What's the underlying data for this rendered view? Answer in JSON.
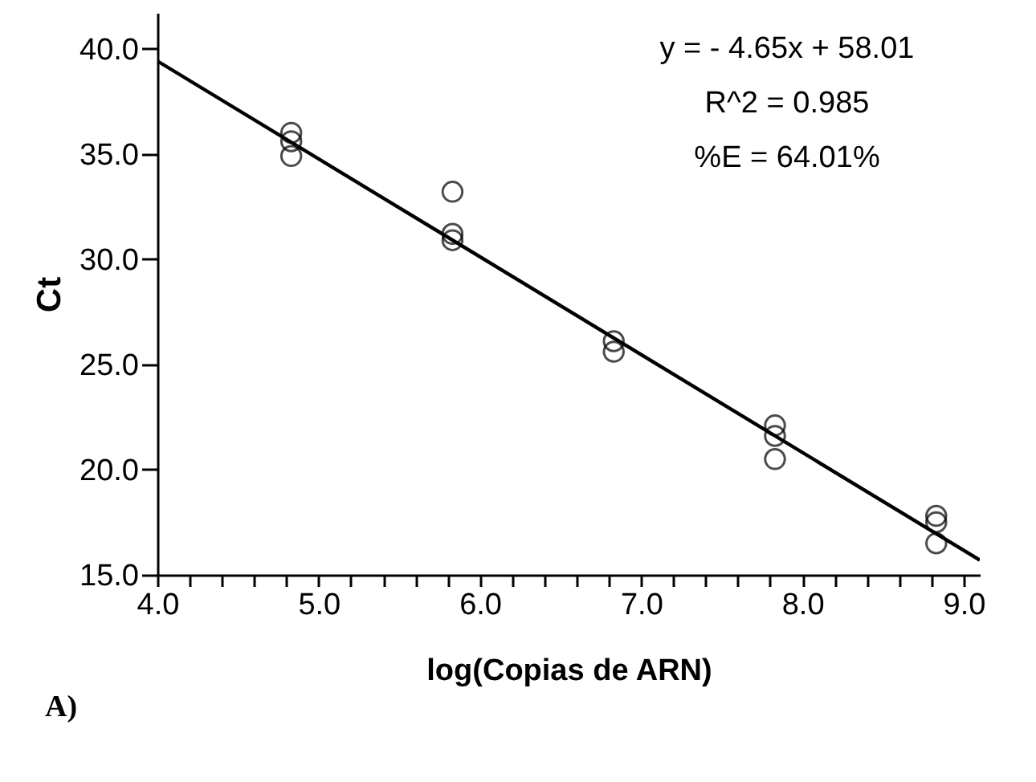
{
  "chart_data": {
    "type": "scatter",
    "xlabel": "log(Copias de ARN)",
    "ylabel": "Ct",
    "series": [
      {
        "type": "scatter",
        "color": "#000000",
        "marker": "circle",
        "x": [
          4.83,
          4.83,
          4.83,
          5.83,
          5.83,
          5.83,
          6.83,
          6.83,
          7.83,
          7.83,
          7.83,
          8.83,
          8.83,
          8.83
        ],
        "values": [
          36.0,
          35.6,
          34.9,
          33.2,
          31.2,
          30.9,
          26.1,
          25.6,
          22.1,
          21.6,
          20.5,
          17.8,
          17.5,
          16.5
        ]
      },
      {
        "type": "line",
        "color": "#000000",
        "marker": "none",
        "line_style": "solid",
        "x": [
          4.0,
          9.1
        ],
        "values": [
          39.41,
          15.7
        ]
      }
    ],
    "xlim": [
      4.0,
      9.1
    ],
    "ylim": [
      15.0,
      41.7
    ],
    "xticks": [
      {
        "value": 4.0,
        "label": "4.0"
      },
      {
        "value": 4.2,
        "label": null
      },
      {
        "value": 4.4,
        "label": null
      },
      {
        "value": 4.6,
        "label": null
      },
      {
        "value": 4.8,
        "label": null
      },
      {
        "value": 5.0,
        "label": "5.0"
      },
      {
        "value": 5.2,
        "label": null
      },
      {
        "value": 5.4,
        "label": null
      },
      {
        "value": 5.6,
        "label": null
      },
      {
        "value": 5.8,
        "label": null
      },
      {
        "value": 6.0,
        "label": "6.0"
      },
      {
        "value": 6.2,
        "label": null
      },
      {
        "value": 6.4,
        "label": null
      },
      {
        "value": 6.6,
        "label": null
      },
      {
        "value": 6.8,
        "label": null
      },
      {
        "value": 7.0,
        "label": "7.0"
      },
      {
        "value": 7.2,
        "label": null
      },
      {
        "value": 7.4,
        "label": null
      },
      {
        "value": 7.6,
        "label": null
      },
      {
        "value": 7.8,
        "label": null
      },
      {
        "value": 8.0,
        "label": "8.0"
      },
      {
        "value": 8.2,
        "label": null
      },
      {
        "value": 8.4,
        "label": null
      },
      {
        "value": 8.6,
        "label": null
      },
      {
        "value": 8.8,
        "label": null
      },
      {
        "value": 9.0,
        "label": "9.0"
      }
    ],
    "yticks": [
      {
        "value": 15,
        "label": "15.0"
      },
      {
        "value": 20,
        "label": "20.0"
      },
      {
        "value": 25,
        "label": "25.0"
      },
      {
        "value": 30,
        "label": "30.0"
      },
      {
        "value": 35,
        "label": "35.0"
      },
      {
        "value": 40,
        "label": "40.0"
      }
    ],
    "annotations": [
      "y = - 4.65x + 58.01",
      "R^2 = 0.985",
      "%E = 64.01%",
      "A)"
    ]
  }
}
